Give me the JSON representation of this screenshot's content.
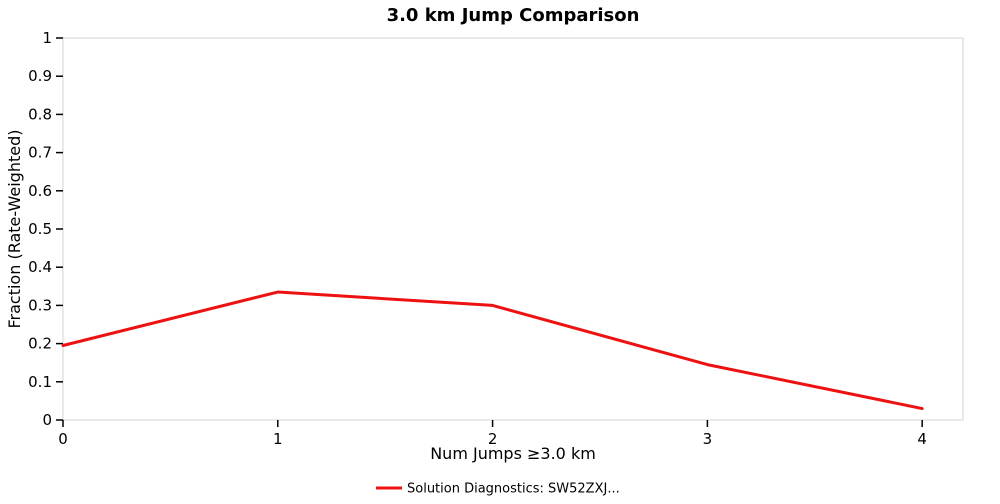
{
  "chart_data": {
    "type": "line",
    "title": "3.0 km Jump Comparison",
    "xlabel": "Num Jumps ≥3.0 km",
    "ylabel": "Fraction (Rate-Weighted)",
    "x": [
      0,
      1,
      2,
      3,
      4
    ],
    "series": [
      {
        "name": "Solution Diagnostics: SW52ZXJ...",
        "color": "#ee1111",
        "values": [
          0.195,
          0.335,
          0.3,
          0.145,
          0.03
        ]
      }
    ],
    "xticks": [
      0,
      1,
      2,
      3,
      4
    ],
    "yticks": [
      0,
      0.1,
      0.2,
      0.3,
      0.4,
      0.5,
      0.6,
      0.7,
      0.8,
      0.9,
      1
    ],
    "xlim": [
      0,
      4.19
    ],
    "ylim": [
      0,
      1
    ],
    "grid": false,
    "legend_position": "bottom",
    "plot_border_color": "#d3d3d3",
    "tick_color": "#000000",
    "line_width": 3
  }
}
